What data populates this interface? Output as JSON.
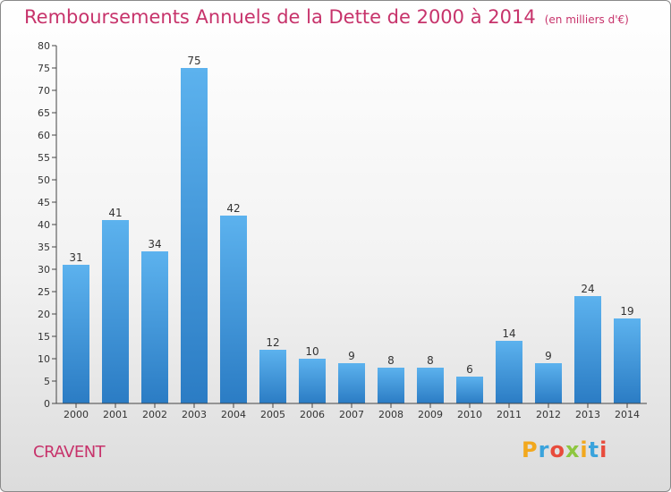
{
  "header": {
    "title": "Remboursements Annuels de la Dette de 2000 à 2014",
    "unit": "(en milliers d'€)"
  },
  "footer": {
    "commune": "CRAVENT",
    "logo_letters": [
      "P",
      "r",
      "o",
      "x",
      "i",
      "t",
      "i"
    ],
    "logo_colors": [
      "#f2a81d",
      "#3aa3dc",
      "#e84b3c",
      "#8dc63f",
      "#f2a81d",
      "#3aa3dc",
      "#e84b3c"
    ]
  },
  "colors": {
    "title": "#c7336b",
    "bar_top": "#5cb2ee",
    "bar_bottom": "#2b7cc4"
  },
  "chart_data": {
    "type": "bar",
    "title": "Remboursements Annuels de la Dette de 2000 à 2014",
    "categories": [
      "2000",
      "2001",
      "2002",
      "2003",
      "2004",
      "2005",
      "2006",
      "2007",
      "2008",
      "2009",
      "2010",
      "2011",
      "2012",
      "2013",
      "2014"
    ],
    "values": [
      31,
      41,
      34,
      75,
      42,
      12,
      10,
      9,
      8,
      8,
      6,
      14,
      9,
      24,
      19
    ],
    "ylim": [
      0,
      80
    ],
    "yticks": [
      0,
      5,
      10,
      15,
      20,
      25,
      30,
      35,
      40,
      45,
      50,
      55,
      60,
      65,
      70,
      75,
      80
    ],
    "grid": false,
    "data_labels": true
  }
}
